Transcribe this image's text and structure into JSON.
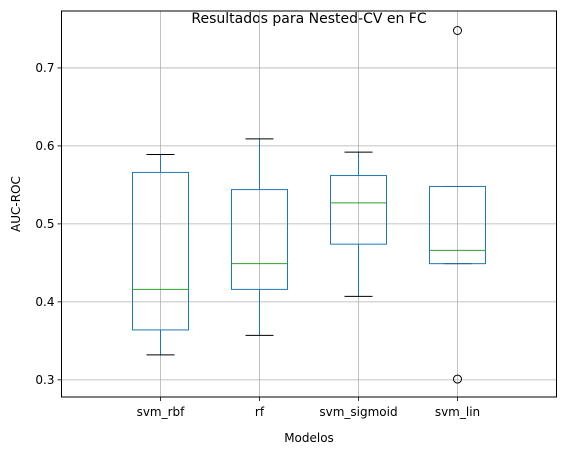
{
  "chart_data": {
    "type": "boxplot",
    "title": "Resultados para Nested-CV en FC",
    "xlabel": "Modelos",
    "ylabel": "AUC-ROC",
    "ylim": [
      0.278,
      0.773
    ],
    "yticks": [
      0.3,
      0.4,
      0.5,
      0.6,
      0.7
    ],
    "ytick_labels": [
      "0.3",
      "0.4",
      "0.5",
      "0.6",
      "0.7"
    ],
    "grid": true,
    "categories": [
      "svm_rbf",
      "rf",
      "svm_sigmoid",
      "svm_lin"
    ],
    "boxes": [
      {
        "name": "svm_rbf",
        "whisker_low": 0.332,
        "q1": 0.364,
        "median": 0.416,
        "q3": 0.566,
        "whisker_high": 0.589,
        "outliers": []
      },
      {
        "name": "rf",
        "whisker_low": 0.357,
        "q1": 0.416,
        "median": 0.449,
        "q3": 0.544,
        "whisker_high": 0.609,
        "outliers": []
      },
      {
        "name": "svm_sigmoid",
        "whisker_low": 0.407,
        "q1": 0.474,
        "median": 0.527,
        "q3": 0.562,
        "whisker_high": 0.592,
        "outliers": []
      },
      {
        "name": "svm_lin",
        "whisker_low": 0.449,
        "q1": 0.449,
        "median": 0.466,
        "q3": 0.548,
        "whisker_high": 0.548,
        "outliers": [
          0.748,
          0.301
        ]
      }
    ],
    "colors": {
      "box": "#1f77b4",
      "median": "#2ca02c",
      "whisker": "#000000",
      "grid": "#b0b0b0"
    }
  }
}
